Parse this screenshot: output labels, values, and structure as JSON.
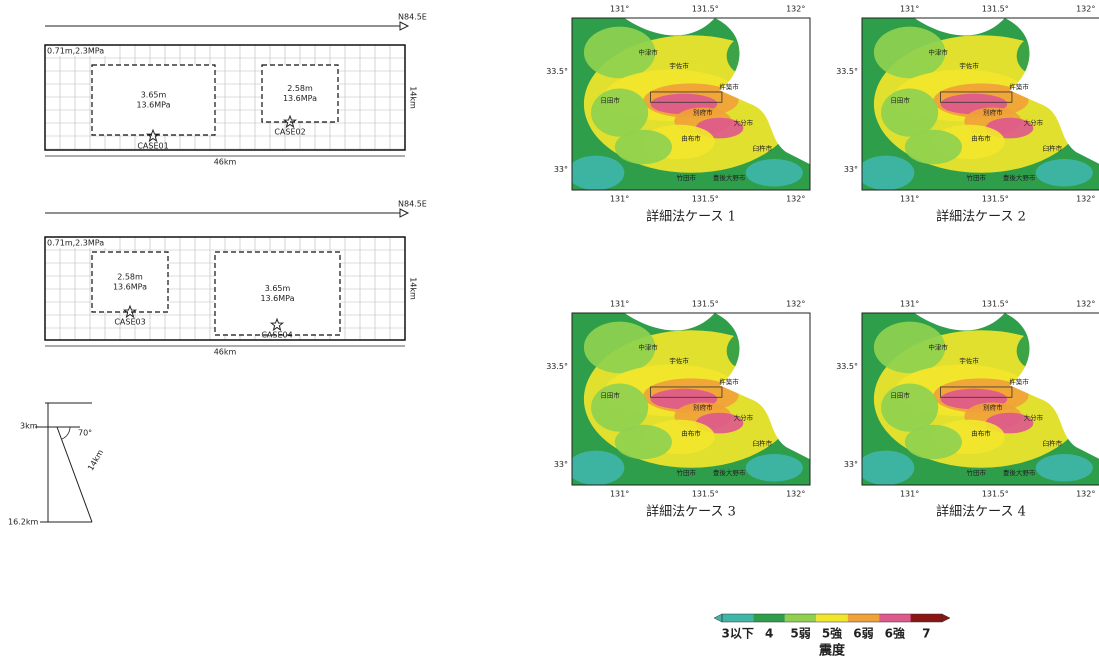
{
  "fault_models": [
    {
      "direction": "N84.5E",
      "background": "0.71m,2.3MPa",
      "width": "14km",
      "length": "46km",
      "asperities": [
        {
          "slip": "3.65m",
          "stress": "13.6MPa",
          "case": "CASE01"
        },
        {
          "slip": "2.58m",
          "stress": "13.6MPa",
          "case": "CASE02"
        }
      ]
    },
    {
      "direction": "N84.5E",
      "background": "0.71m,2.3MPa",
      "width": "14km",
      "length": "46km",
      "asperities": [
        {
          "slip": "2.58m",
          "stress": "13.6MPa",
          "case": "CASE03"
        },
        {
          "slip": "3.65m",
          "stress": "13.6MPa",
          "case": "CASE04"
        }
      ]
    }
  ],
  "cross_section": {
    "top_depth": "3km",
    "dip": "70°",
    "width": "14km",
    "bottom_depth": "16.2km"
  },
  "maps": {
    "lon_labels": [
      "131°",
      "131.5°",
      "132°"
    ],
    "lat_labels": [
      "33.5°",
      "33°"
    ],
    "cities": [
      "中津市",
      "宇佐市",
      "杵築市",
      "日田市",
      "別府市",
      "大分市",
      "由布市",
      "臼杵市",
      "竹田市",
      "豊後大野市"
    ],
    "panels": [
      {
        "caption": "詳細法ケース 1"
      },
      {
        "caption": "詳細法ケース 2"
      },
      {
        "caption": "詳細法ケース 3"
      },
      {
        "caption": "詳細法ケース 4"
      }
    ]
  },
  "legend": {
    "title": "震度",
    "classes": [
      {
        "label": "3以下",
        "color": "#3fb6a8"
      },
      {
        "label": "4",
        "color": "#2e9e4a"
      },
      {
        "label": "5弱",
        "color": "#8fd14f"
      },
      {
        "label": "5強",
        "color": "#f2e62c"
      },
      {
        "label": "6弱",
        "color": "#f0a23a"
      },
      {
        "label": "6強",
        "color": "#de5a8c"
      },
      {
        "label": "7",
        "color": "#8b1414"
      }
    ]
  }
}
